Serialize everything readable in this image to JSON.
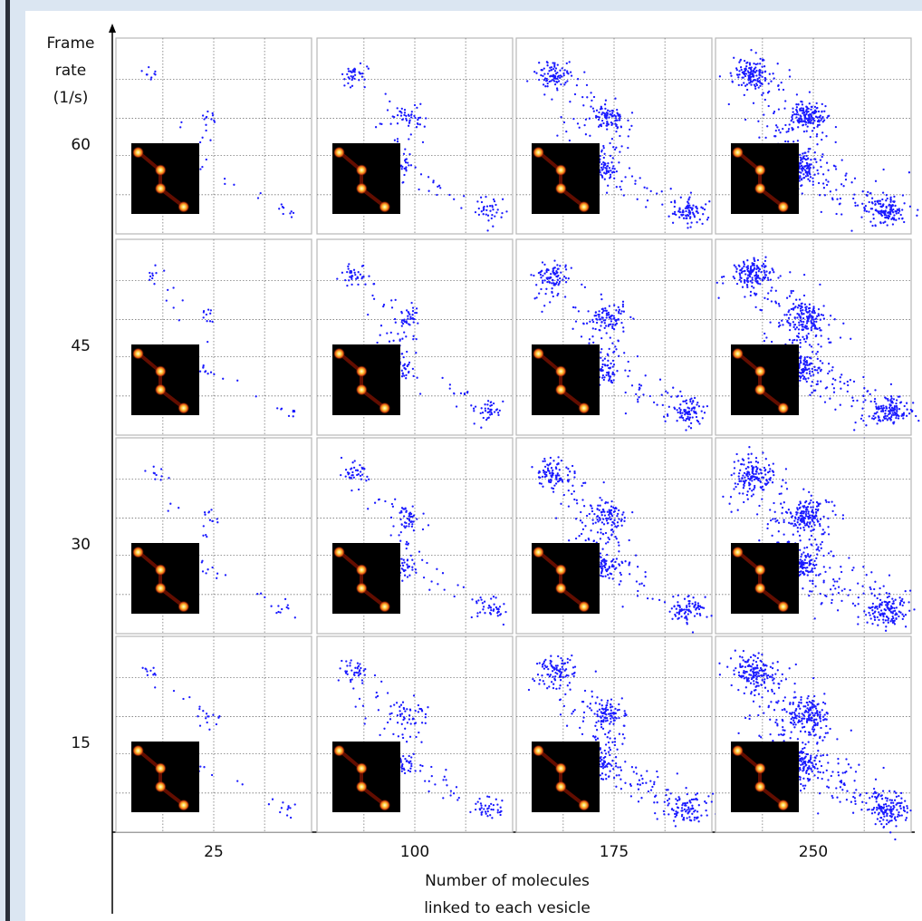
{
  "y_axis": {
    "label_lines": [
      "Frame",
      "rate",
      "(1/s)"
    ],
    "ticks": [
      "60",
      "45",
      "30",
      "15"
    ]
  },
  "x_axis": {
    "ticks": [
      "25",
      "100",
      "175",
      "250"
    ],
    "label_lines": [
      "Number of molecules",
      "linked to each vesicle"
    ]
  }
}
